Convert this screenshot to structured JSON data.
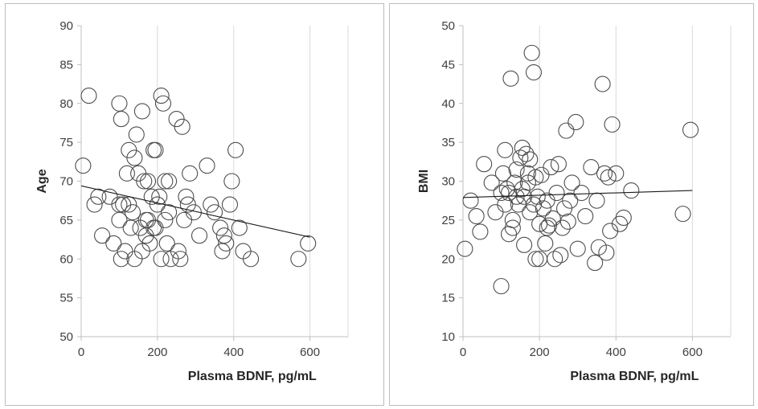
{
  "chart_data": [
    {
      "type": "scatter",
      "xlabel": "Plasma BDNF, pg/mL",
      "ylabel": "Age",
      "xlim": [
        0,
        700
      ],
      "ylim": [
        50,
        90
      ],
      "xticks": [
        0,
        200,
        400,
        600
      ],
      "yticks": [
        50,
        55,
        60,
        65,
        70,
        75,
        80,
        85,
        90
      ],
      "grid": "vertical",
      "trendline": {
        "x": [
          0,
          600
        ],
        "y": [
          69.4,
          62.8
        ]
      },
      "points": [
        [
          5,
          72
        ],
        [
          20,
          81
        ],
        [
          35,
          67
        ],
        [
          45,
          68
        ],
        [
          55,
          63
        ],
        [
          75,
          68
        ],
        [
          85,
          62
        ],
        [
          100,
          80
        ],
        [
          105,
          78
        ],
        [
          100,
          67
        ],
        [
          110,
          67
        ],
        [
          100,
          65
        ],
        [
          105,
          60
        ],
        [
          115,
          61
        ],
        [
          120,
          71
        ],
        [
          125,
          74
        ],
        [
          125,
          67
        ],
        [
          130,
          64
        ],
        [
          135,
          66
        ],
        [
          140,
          60
        ],
        [
          140,
          73
        ],
        [
          145,
          76
        ],
        [
          150,
          71
        ],
        [
          155,
          64
        ],
        [
          160,
          79
        ],
        [
          160,
          61
        ],
        [
          165,
          70
        ],
        [
          170,
          63
        ],
        [
          175,
          65
        ],
        [
          170,
          65
        ],
        [
          175,
          70
        ],
        [
          180,
          62
        ],
        [
          185,
          68
        ],
        [
          190,
          64
        ],
        [
          190,
          74
        ],
        [
          195,
          74
        ],
        [
          195,
          64
        ],
        [
          200,
          67
        ],
        [
          205,
          68
        ],
        [
          210,
          81
        ],
        [
          215,
          80
        ],
        [
          210,
          60
        ],
        [
          220,
          65
        ],
        [
          225,
          62
        ],
        [
          220,
          70
        ],
        [
          230,
          70
        ],
        [
          230,
          66
        ],
        [
          235,
          60
        ],
        [
          250,
          78
        ],
        [
          255,
          61
        ],
        [
          260,
          60
        ],
        [
          265,
          77
        ],
        [
          270,
          65
        ],
        [
          275,
          68
        ],
        [
          280,
          67
        ],
        [
          285,
          71
        ],
        [
          295,
          66
        ],
        [
          310,
          63
        ],
        [
          330,
          72
        ],
        [
          340,
          67
        ],
        [
          350,
          66
        ],
        [
          365,
          64
        ],
        [
          370,
          61
        ],
        [
          375,
          63
        ],
        [
          380,
          62
        ],
        [
          390,
          67
        ],
        [
          395,
          70
        ],
        [
          405,
          74
        ],
        [
          415,
          64
        ],
        [
          425,
          61
        ],
        [
          445,
          60
        ],
        [
          570,
          60
        ],
        [
          595,
          62
        ]
      ]
    },
    {
      "type": "scatter",
      "xlabel": "Plasma BDNF, pg/mL",
      "ylabel": "BMI",
      "xlim": [
        0,
        700
      ],
      "ylim": [
        10,
        50
      ],
      "xticks": [
        0,
        200,
        400,
        600
      ],
      "yticks": [
        10,
        15,
        20,
        25,
        30,
        35,
        40,
        45,
        50
      ],
      "grid": "vertical",
      "trendline": {
        "x": [
          0,
          600
        ],
        "y": [
          27.9,
          28.8
        ]
      },
      "points": [
        [
          5,
          21.3
        ],
        [
          20,
          27.5
        ],
        [
          35,
          25.5
        ],
        [
          45,
          23.5
        ],
        [
          55,
          32.2
        ],
        [
          75,
          29.8
        ],
        [
          85,
          26
        ],
        [
          100,
          28.5
        ],
        [
          100,
          16.5
        ],
        [
          105,
          31
        ],
        [
          110,
          27
        ],
        [
          110,
          34
        ],
        [
          115,
          29
        ],
        [
          120,
          28.5
        ],
        [
          120,
          23.2
        ],
        [
          125,
          43.2
        ],
        [
          130,
          25
        ],
        [
          130,
          24
        ],
        [
          135,
          29.8
        ],
        [
          140,
          28
        ],
        [
          140,
          31.5
        ],
        [
          145,
          27
        ],
        [
          150,
          33
        ],
        [
          155,
          29
        ],
        [
          155,
          34.3
        ],
        [
          160,
          21.8
        ],
        [
          160,
          28
        ],
        [
          165,
          33.5
        ],
        [
          170,
          31
        ],
        [
          170,
          29.8
        ],
        [
          175,
          32.8
        ],
        [
          175,
          26
        ],
        [
          180,
          46.5
        ],
        [
          185,
          44
        ],
        [
          185,
          27
        ],
        [
          190,
          30.5
        ],
        [
          190,
          20
        ],
        [
          195,
          28
        ],
        [
          200,
          24.5
        ],
        [
          200,
          20
        ],
        [
          205,
          30.8
        ],
        [
          210,
          26.5
        ],
        [
          215,
          22
        ],
        [
          220,
          27.5
        ],
        [
          220,
          24
        ],
        [
          225,
          24.3
        ],
        [
          230,
          31.8
        ],
        [
          235,
          25.2
        ],
        [
          240,
          20
        ],
        [
          245,
          28.5
        ],
        [
          250,
          32.2
        ],
        [
          255,
          20.5
        ],
        [
          260,
          24
        ],
        [
          265,
          26.5
        ],
        [
          270,
          36.5
        ],
        [
          275,
          24.8
        ],
        [
          280,
          27.5
        ],
        [
          285,
          29.8
        ],
        [
          295,
          37.6
        ],
        [
          300,
          21.3
        ],
        [
          310,
          28.5
        ],
        [
          320,
          25.5
        ],
        [
          335,
          31.8
        ],
        [
          345,
          19.5
        ],
        [
          350,
          27.5
        ],
        [
          355,
          21.5
        ],
        [
          365,
          42.5
        ],
        [
          370,
          31
        ],
        [
          375,
          20.8
        ],
        [
          380,
          30.5
        ],
        [
          385,
          23.6
        ],
        [
          390,
          37.3
        ],
        [
          400,
          31
        ],
        [
          410,
          24.5
        ],
        [
          420,
          25.3
        ],
        [
          440,
          28.8
        ],
        [
          575,
          25.8
        ],
        [
          595,
          36.6
        ]
      ]
    }
  ]
}
